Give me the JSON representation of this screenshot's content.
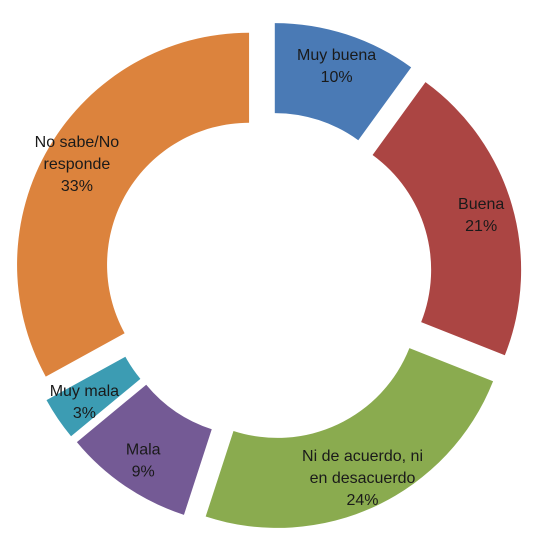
{
  "chart_data": {
    "type": "doughnut",
    "title": "",
    "slices": [
      {
        "label_lines": [
          "Muy buena"
        ],
        "pct_label": "10%",
        "value": 10,
        "color": "#4a7ab5"
      },
      {
        "label_lines": [
          "Buena"
        ],
        "pct_label": "21%",
        "value": 21,
        "color": "#ab4543"
      },
      {
        "label_lines": [
          "Ni de acuerdo, ni",
          "en desacuerdo"
        ],
        "pct_label": "24%",
        "value": 24,
        "color": "#8aab4f"
      },
      {
        "label_lines": [
          "Mala"
        ],
        "pct_label": "9%",
        "value": 9,
        "color": "#745a95"
      },
      {
        "label_lines": [
          "Muy mala"
        ],
        "pct_label": "3%",
        "value": 3,
        "color": "#3c9cb3"
      },
      {
        "label_lines": [
          "No sabe/No",
          "responde"
        ],
        "pct_label": "33%",
        "value": 33,
        "color": "#dc833d"
      }
    ],
    "exploded": true,
    "legend": "none"
  }
}
